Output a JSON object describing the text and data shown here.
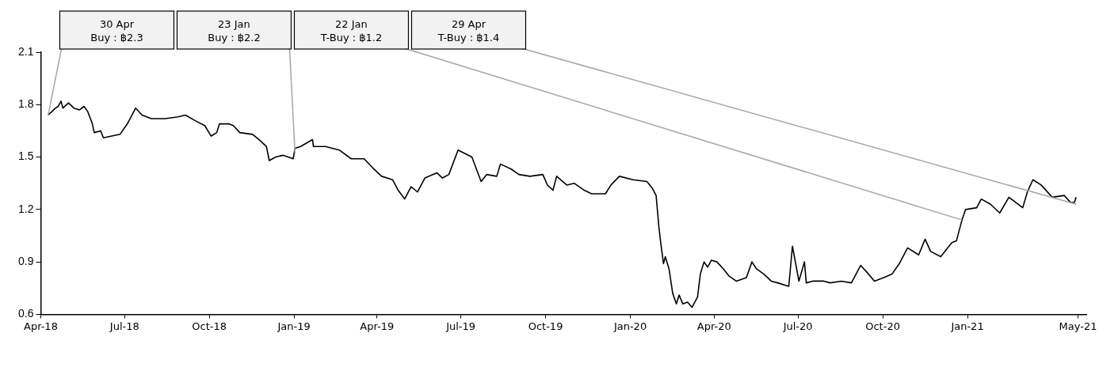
{
  "chart_data": {
    "type": "line",
    "legend": false,
    "grid": false,
    "x": [
      "2018-04-09",
      "2018-04-13",
      "2018-04-17",
      "2018-04-20",
      "2018-04-23",
      "2018-04-25",
      "2018-05-01",
      "2018-05-07",
      "2018-05-13",
      "2018-05-18",
      "2018-05-22",
      "2018-05-27",
      "2018-05-29",
      "2018-06-05",
      "2018-06-08",
      "2018-06-17",
      "2018-06-26",
      "2018-07-04",
      "2018-07-13",
      "2018-07-20",
      "2018-07-30",
      "2018-08-14",
      "2018-08-28",
      "2018-09-05",
      "2018-09-15",
      "2018-09-26",
      "2018-10-03",
      "2018-10-09",
      "2018-10-12",
      "2018-10-22",
      "2018-10-27",
      "2018-11-03",
      "2018-11-17",
      "2018-11-26",
      "2018-12-02",
      "2018-12-05",
      "2018-12-12",
      "2018-12-20",
      "2018-12-31",
      "2019-01-02",
      "2019-01-08",
      "2019-01-21",
      "2019-01-22",
      "2019-02-04",
      "2019-02-19",
      "2019-03-04",
      "2019-03-18",
      "2019-03-27",
      "2019-04-06",
      "2019-04-18",
      "2019-04-24",
      "2019-05-01",
      "2019-05-08",
      "2019-05-15",
      "2019-05-23",
      "2019-06-05",
      "2019-06-11",
      "2019-06-18",
      "2019-06-28",
      "2019-07-13",
      "2019-07-23",
      "2019-07-29",
      "2019-08-09",
      "2019-08-13",
      "2019-08-25",
      "2019-09-02",
      "2019-09-14",
      "2019-09-28",
      "2019-10-03",
      "2019-10-09",
      "2019-10-13",
      "2019-10-24",
      "2019-11-01",
      "2019-11-12",
      "2019-11-20",
      "2019-12-05",
      "2019-12-11",
      "2019-12-20",
      "2020-01-04",
      "2020-01-19",
      "2020-01-25",
      "2020-01-29",
      "2020-02-01",
      "2020-02-03",
      "2020-02-06",
      "2020-02-08",
      "2020-02-12",
      "2020-02-16",
      "2020-02-20",
      "2020-02-23",
      "2020-02-27",
      "2020-03-03",
      "2020-03-08",
      "2020-03-14",
      "2020-03-17",
      "2020-03-21",
      "2020-03-25",
      "2020-03-29",
      "2020-04-04",
      "2020-04-11",
      "2020-04-17",
      "2020-04-25",
      "2020-05-06",
      "2020-05-12",
      "2020-05-17",
      "2020-05-25",
      "2020-06-02",
      "2020-06-09",
      "2020-06-21",
      "2020-06-25",
      "2020-07-02",
      "2020-07-08",
      "2020-07-10",
      "2020-07-17",
      "2020-07-29",
      "2020-08-05",
      "2020-08-17",
      "2020-08-28",
      "2020-09-07",
      "2020-09-14",
      "2020-09-22",
      "2020-10-02",
      "2020-10-11",
      "2020-10-19",
      "2020-10-28",
      "2020-11-09",
      "2020-11-16",
      "2020-11-22",
      "2020-12-03",
      "2020-12-15",
      "2020-12-20",
      "2020-12-26",
      "2020-12-30",
      "2021-01-11",
      "2021-01-16",
      "2021-01-26",
      "2021-02-05",
      "2021-02-15",
      "2021-03-02",
      "2021-03-07",
      "2021-03-13",
      "2021-03-22",
      "2021-04-03",
      "2021-04-16",
      "2021-04-23",
      "2021-04-27",
      "2021-04-29"
    ],
    "series": [
      {
        "color": "#000000",
        "values": [
          1.74,
          1.76,
          1.78,
          1.79,
          1.82,
          1.78,
          1.81,
          1.78,
          1.77,
          1.79,
          1.76,
          1.69,
          1.64,
          1.65,
          1.61,
          1.62,
          1.63,
          1.69,
          1.78,
          1.74,
          1.72,
          1.72,
          1.73,
          1.74,
          1.71,
          1.68,
          1.62,
          1.64,
          1.69,
          1.69,
          1.68,
          1.64,
          1.63,
          1.59,
          1.56,
          1.48,
          1.5,
          1.51,
          1.49,
          1.55,
          1.56,
          1.6,
          1.56,
          1.56,
          1.54,
          1.49,
          1.49,
          1.44,
          1.39,
          1.37,
          1.31,
          1.26,
          1.33,
          1.3,
          1.38,
          1.41,
          1.38,
          1.4,
          1.54,
          1.5,
          1.36,
          1.4,
          1.39,
          1.46,
          1.43,
          1.4,
          1.39,
          1.4,
          1.34,
          1.31,
          1.39,
          1.34,
          1.35,
          1.31,
          1.29,
          1.29,
          1.34,
          1.39,
          1.37,
          1.36,
          1.32,
          1.28,
          1.1,
          1.01,
          0.89,
          0.93,
          0.86,
          0.72,
          0.66,
          0.71,
          0.66,
          0.67,
          0.64,
          0.7,
          0.83,
          0.9,
          0.87,
          0.91,
          0.9,
          0.86,
          0.82,
          0.79,
          0.81,
          0.9,
          0.86,
          0.83,
          0.79,
          0.78,
          0.76,
          0.99,
          0.79,
          0.9,
          0.78,
          0.79,
          0.79,
          0.78,
          0.79,
          0.78,
          0.88,
          0.84,
          0.79,
          0.81,
          0.83,
          0.89,
          0.98,
          0.94,
          1.03,
          0.96,
          0.93,
          1.01,
          1.02,
          1.14,
          1.2,
          1.21,
          1.26,
          1.23,
          1.18,
          1.27,
          1.21,
          1.3,
          1.37,
          1.34,
          1.27,
          1.28,
          1.24,
          1.24,
          1.27
        ]
      }
    ],
    "xlim": [
      "2018-04-01",
      "2021-05-10"
    ],
    "xticks": [
      {
        "value": "2018-04-01",
        "label": "Apr-18"
      },
      {
        "value": "2018-07-01",
        "label": "Jul-18"
      },
      {
        "value": "2018-10-01",
        "label": "Oct-18"
      },
      {
        "value": "2019-01-01",
        "label": "Jan-19"
      },
      {
        "value": "2019-04-01",
        "label": "Apr-19"
      },
      {
        "value": "2019-07-01",
        "label": "Jul-19"
      },
      {
        "value": "2019-10-01",
        "label": "Oct-19"
      },
      {
        "value": "2020-01-01",
        "label": "Jan-20"
      },
      {
        "value": "2020-04-01",
        "label": "Apr-20"
      },
      {
        "value": "2020-07-01",
        "label": "Jul-20"
      },
      {
        "value": "2020-10-01",
        "label": "Oct-20"
      },
      {
        "value": "2021-01-01",
        "label": "Jan-21"
      },
      {
        "value": "2021-05-01",
        "label": "May-21"
      }
    ],
    "ylim": [
      0.6,
      2.1
    ],
    "yticks": [
      0.6,
      0.9,
      1.2,
      1.5,
      1.8,
      2.1
    ],
    "annotations": [
      {
        "text": "30 Apr\nBuy : ฿2.3",
        "x": "2018-04-09",
        "y": 1.74
      },
      {
        "text": "23 Jan\nBuy : ฿2.2",
        "x": "2019-01-02",
        "y": 1.52
      },
      {
        "text": "22 Jan\nT-Buy : ฿1.2",
        "x": "2020-12-26",
        "y": 1.14
      },
      {
        "text": "29 Apr\nT-Buy : ฿1.4",
        "x": "2021-04-29",
        "y": 1.23
      }
    ]
  }
}
